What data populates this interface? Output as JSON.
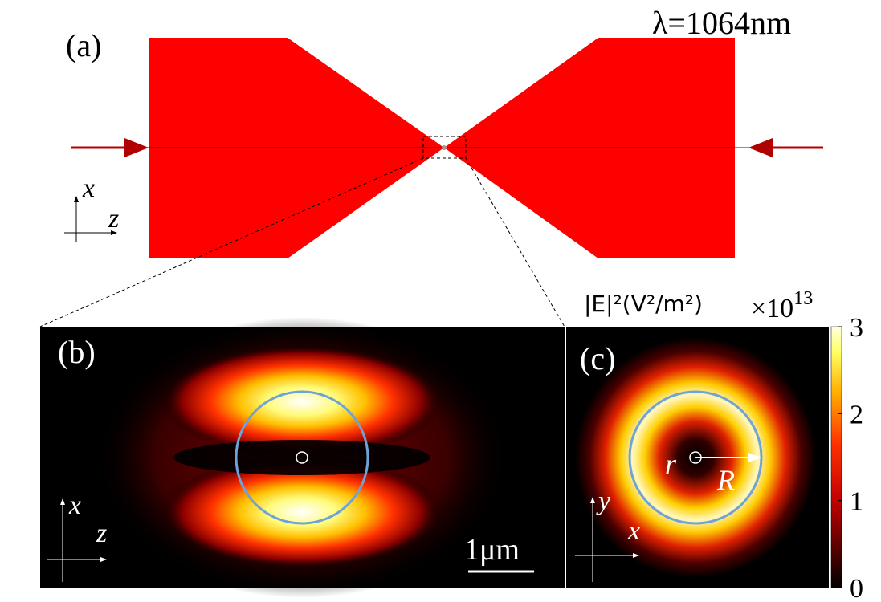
{
  "panel_a": {
    "label": "(a)",
    "wavelength": "λ=1064nm",
    "axis_vertical": "x",
    "axis_horizontal": "z"
  },
  "panel_b": {
    "label": "(b)",
    "axis_vertical": "x",
    "axis_horizontal": "z",
    "scale_bar": "1μm"
  },
  "panel_c": {
    "label": "(c)",
    "axis_vertical": "y",
    "axis_horizontal": "x",
    "inner_radius": "r",
    "outer_radius": "R"
  },
  "colorbar": {
    "label": "|E|²(V²/m²)",
    "multiplier": "×10",
    "exponent": "13",
    "lim": [
      0,
      3
    ],
    "ticks": [
      0,
      1,
      2,
      3
    ]
  }
}
